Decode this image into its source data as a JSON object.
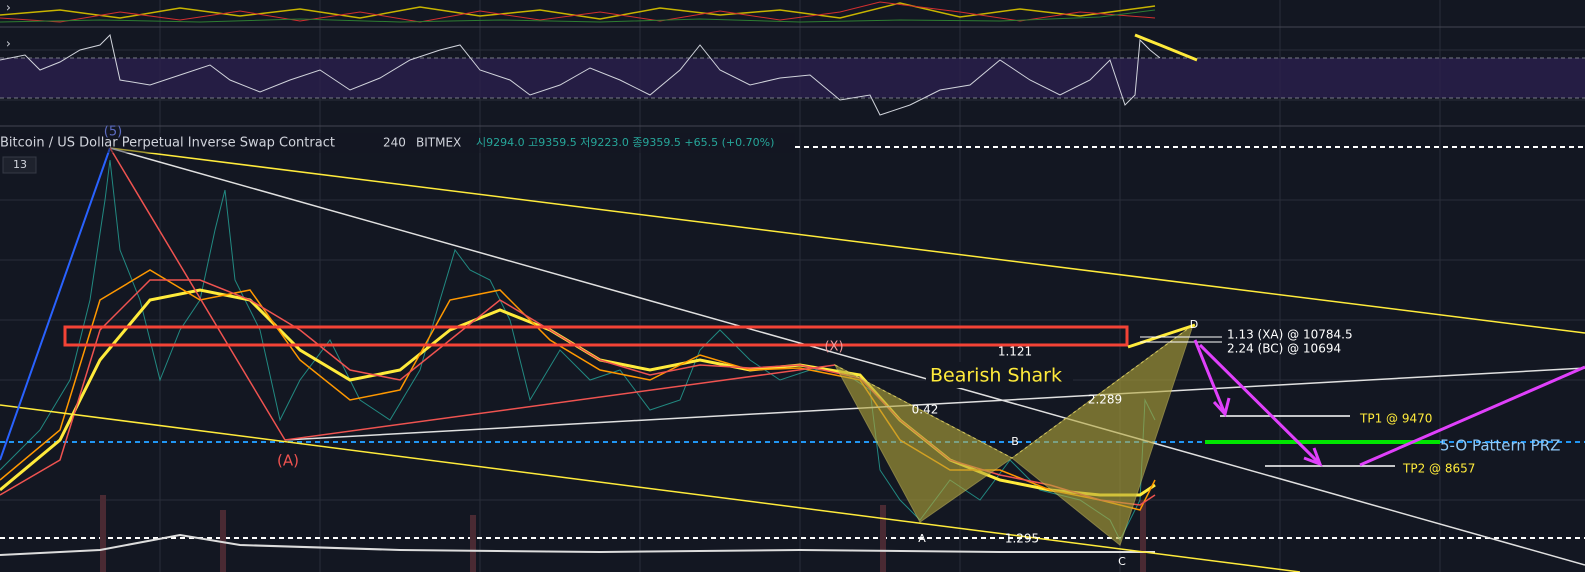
{
  "header": {
    "symbol": "Bitcoin / US Dollar Perpetual Inverse Swap Contract",
    "interval": "240",
    "exchange": "BITMEX",
    "ohlc": "시9294.0 고9359.5 저9223.0 종9359.5 +65.5 (+0.70%)"
  },
  "pane_counter": "13",
  "wave_labels": {
    "five": "(5)",
    "a": "(A)",
    "x": "(X)"
  },
  "pattern": {
    "name": "Bearish Shark",
    "xa_ratio": "1.121",
    "ab_ratio": "0.42",
    "bc_ratio": "2.289",
    "cd_ratio": "1.295",
    "point_a": "A",
    "point_b": "B",
    "point_c": "C",
    "point_d": "D"
  },
  "targets": {
    "xa": "1.13 (XA) @ 10784.5",
    "bc": "2.24 (BC) @ 10694",
    "tp1": "TP1 @ 9470",
    "tp2": "TP2 @ 8657",
    "prz": "5-O Pattern PRZ"
  }
}
